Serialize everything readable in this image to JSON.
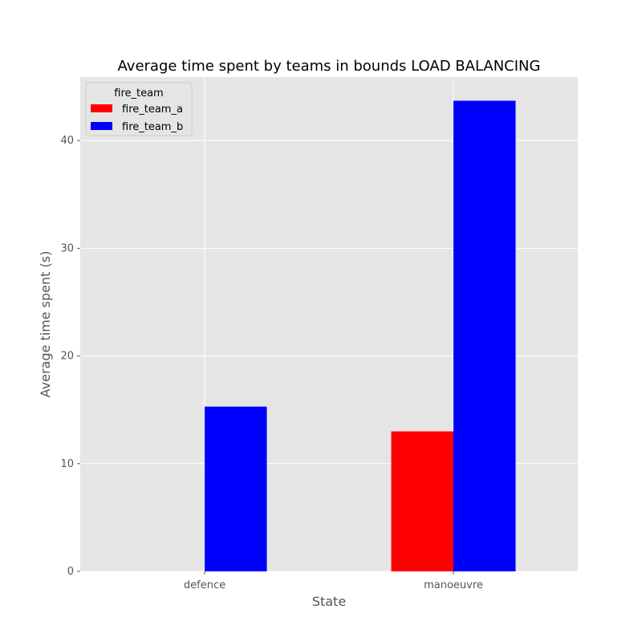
{
  "chart_data": {
    "type": "bar",
    "title": "Average time spent by teams in bounds LOAD BALANCING",
    "xlabel": "State",
    "ylabel": "Average time spent (s)",
    "categories": [
      "defence",
      "manoeuvre"
    ],
    "series": [
      {
        "name": "fire_team_a",
        "color": "#ff0000",
        "values": [
          0,
          13.0
        ]
      },
      {
        "name": "fire_team_b",
        "color": "#0000ff",
        "values": [
          15.3,
          43.7
        ]
      }
    ],
    "ylim": [
      0,
      45.9
    ],
    "yticks": [
      0,
      10,
      20,
      30,
      40
    ],
    "grid": true,
    "legend": {
      "title": "fire_team",
      "position": "top-left"
    },
    "colors": {
      "plot_background": "#e5e5e5",
      "grid": "#ffffff"
    }
  }
}
